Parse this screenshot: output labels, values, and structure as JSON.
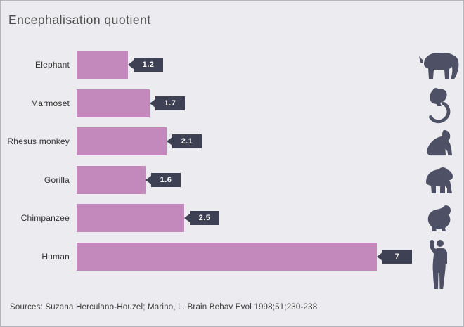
{
  "title": "Encephalisation quotient",
  "source": "Sources: Suzana Herculano-Houzel; Marino, L. Brain Behav Evol 1998;51;230-238",
  "colors": {
    "background": "#ecebf0",
    "bar": "#c489bc",
    "badge": "#3e4154",
    "icon": "#4e5065",
    "title_text": "#4d4d4d",
    "label_text": "#333333",
    "badge_text": "#ffffff"
  },
  "chart_data": {
    "type": "bar",
    "orientation": "horizontal",
    "title": "Encephalisation quotient",
    "categories": [
      "Elephant",
      "Marmoset",
      "Rhesus monkey",
      "Gorilla",
      "Chimpanzee",
      "Human"
    ],
    "values": [
      1.2,
      1.7,
      2.1,
      1.6,
      2.5,
      7
    ],
    "value_labels": [
      "1.2",
      "1.7",
      "2.1",
      "1.6",
      "2.5",
      "7"
    ],
    "icons": [
      "elephant-icon",
      "marmoset-icon",
      "rhesus-monkey-icon",
      "gorilla-icon",
      "chimpanzee-icon",
      "human-icon"
    ],
    "xlim": [
      0,
      7.2
    ],
    "xlabel": "",
    "ylabel": "",
    "grid": false,
    "legend": "none",
    "value_label_style": "dark-arrow-badge-at-bar-end"
  }
}
